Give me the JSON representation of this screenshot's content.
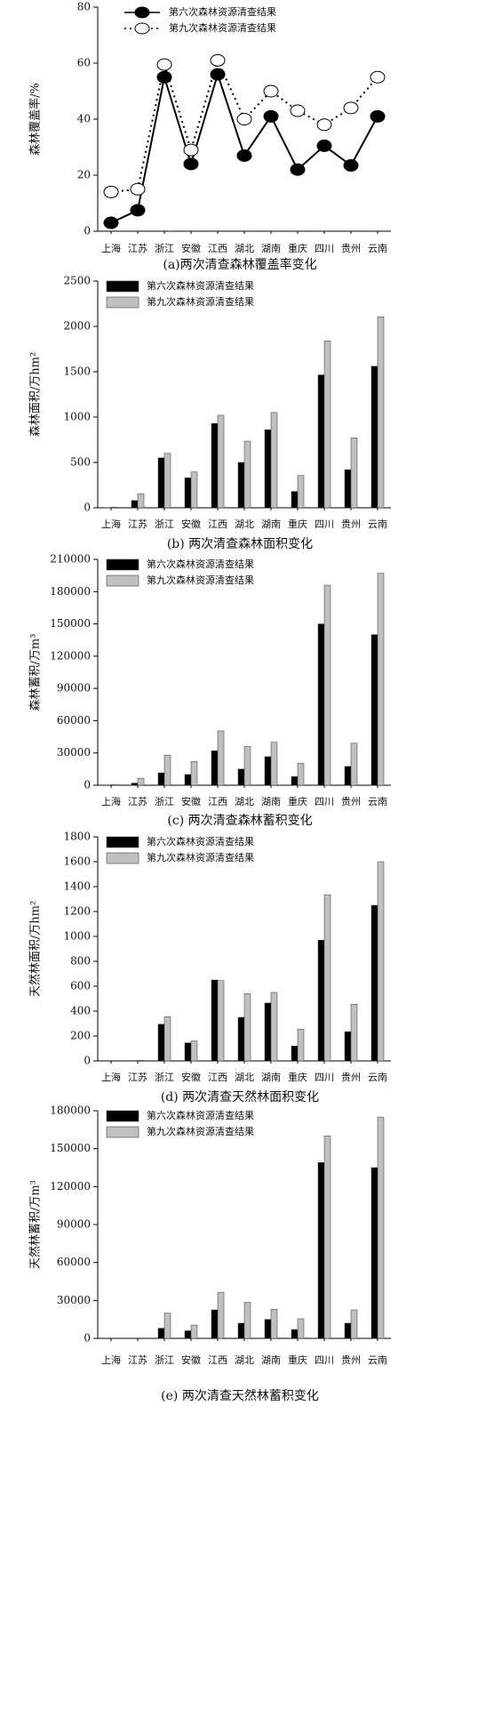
{
  "chart_data": [
    {
      "type": "line",
      "y_label": "森林覆盖率/%",
      "caption": "(a)两次清查森林覆盖率变化",
      "categories": [
        "上海",
        "江苏",
        "浙江",
        "安徽",
        "江西",
        "湖北",
        "湖南",
        "重庆",
        "四川",
        "贵州",
        "云南"
      ],
      "series": [
        {
          "name": "第六次森林资源清查结果",
          "color": "#000000",
          "line_style": "solid",
          "marker": "filled",
          "values": [
            3,
            7.5,
            55,
            24,
            56,
            27,
            41,
            22,
            30.5,
            23.5,
            41
          ]
        },
        {
          "name": "第九次森林资源清查结果",
          "color": "#000000",
          "line_style": "dotted",
          "marker": "open",
          "values": [
            14,
            15,
            59.5,
            29,
            61,
            40,
            50,
            43,
            38,
            44,
            55
          ]
        }
      ],
      "ylim": [
        0,
        80
      ],
      "yticks": [
        0,
        20,
        40,
        60,
        80
      ],
      "legend": "upper center"
    },
    {
      "type": "bar",
      "y_label": "森林面积/万hm²",
      "caption": "(b) 两次清查森林面积变化",
      "categories": [
        "上海",
        "江苏",
        "浙江",
        "安徽",
        "江西",
        "湖北",
        "湖南",
        "重庆",
        "四川",
        "贵州",
        "云南"
      ],
      "series": [
        {
          "name": "第六次森林资源清查结果",
          "color": "#000000",
          "values": [
            2,
            80,
            550,
            330,
            930,
            500,
            860,
            180,
            1465,
            420,
            1560
          ]
        },
        {
          "name": "第九次森林资源清查结果",
          "color": "#c0c0c0",
          "values": [
            8,
            155,
            600,
            395,
            1020,
            735,
            1050,
            355,
            1840,
            770,
            2105
          ]
        }
      ],
      "ylim": [
        0,
        2500
      ],
      "yticks": [
        0,
        500,
        1000,
        1500,
        2000,
        2500
      ],
      "legend": "upper left"
    },
    {
      "type": "bar",
      "y_label": "森林蓄积/万m³",
      "caption": "(c) 两次清查森林蓄积变化",
      "categories": [
        "上海",
        "江苏",
        "浙江",
        "安徽",
        "江西",
        "湖北",
        "湖南",
        "重庆",
        "四川",
        "贵州",
        "云南"
      ],
      "series": [
        {
          "name": "第六次森林资源清查结果",
          "color": "#000000",
          "values": [
            300,
            2000,
            11500,
            10000,
            32000,
            15000,
            26500,
            8000,
            150000,
            17500,
            140000
          ]
        },
        {
          "name": "第九次森林资源清查结果",
          "color": "#c0c0c0",
          "values": [
            600,
            6500,
            28000,
            22000,
            50500,
            36000,
            40000,
            20500,
            186000,
            39000,
            197000
          ]
        }
      ],
      "ylim": [
        0,
        210000
      ],
      "yticks": [
        0,
        30000,
        60000,
        90000,
        120000,
        150000,
        180000,
        210000
      ],
      "legend": "upper left"
    },
    {
      "type": "bar",
      "y_label": "天然林面积/万hm²",
      "caption": "(d) 两次清查天然林面积变化",
      "categories": [
        "上海",
        "江苏",
        "浙江",
        "安徽",
        "江西",
        "湖北",
        "湖南",
        "重庆",
        "四川",
        "贵州",
        "云南"
      ],
      "series": [
        {
          "name": "第六次森林资源清查结果",
          "color": "#000000",
          "values": [
            0,
            3,
            295,
            145,
            650,
            350,
            465,
            120,
            970,
            235,
            1250
          ]
        },
        {
          "name": "第九次森林资源清查结果",
          "color": "#c0c0c0",
          "values": [
            0,
            5,
            355,
            160,
            645,
            540,
            550,
            255,
            1335,
            455,
            1600
          ]
        }
      ],
      "ylim": [
        0,
        1800
      ],
      "yticks": [
        0,
        200,
        400,
        600,
        800,
        1000,
        1200,
        1400,
        1600,
        1800
      ],
      "legend": "upper left"
    },
    {
      "type": "bar",
      "y_label": "天然林蓄积/万m³",
      "caption": "(e) 两次清查天然林蓄积变化",
      "categories": [
        "上海",
        "江苏",
        "浙江",
        "安徽",
        "江西",
        "湖北",
        "湖南",
        "重庆",
        "四川",
        "贵州",
        "云南"
      ],
      "series": [
        {
          "name": "第六次森林资源清查结果",
          "color": "#000000",
          "values": [
            0,
            0,
            8000,
            6000,
            22500,
            12000,
            15000,
            7000,
            139000,
            12000,
            135000
          ]
        },
        {
          "name": "第九次森林资源清查结果",
          "color": "#c0c0c0",
          "values": [
            0,
            0,
            20000,
            10500,
            36500,
            28500,
            23000,
            15500,
            160000,
            22500,
            175000
          ]
        }
      ],
      "ylim": [
        0,
        180000
      ],
      "yticks": [
        0,
        30000,
        60000,
        90000,
        120000,
        150000,
        180000
      ],
      "legend": "upper left"
    }
  ]
}
